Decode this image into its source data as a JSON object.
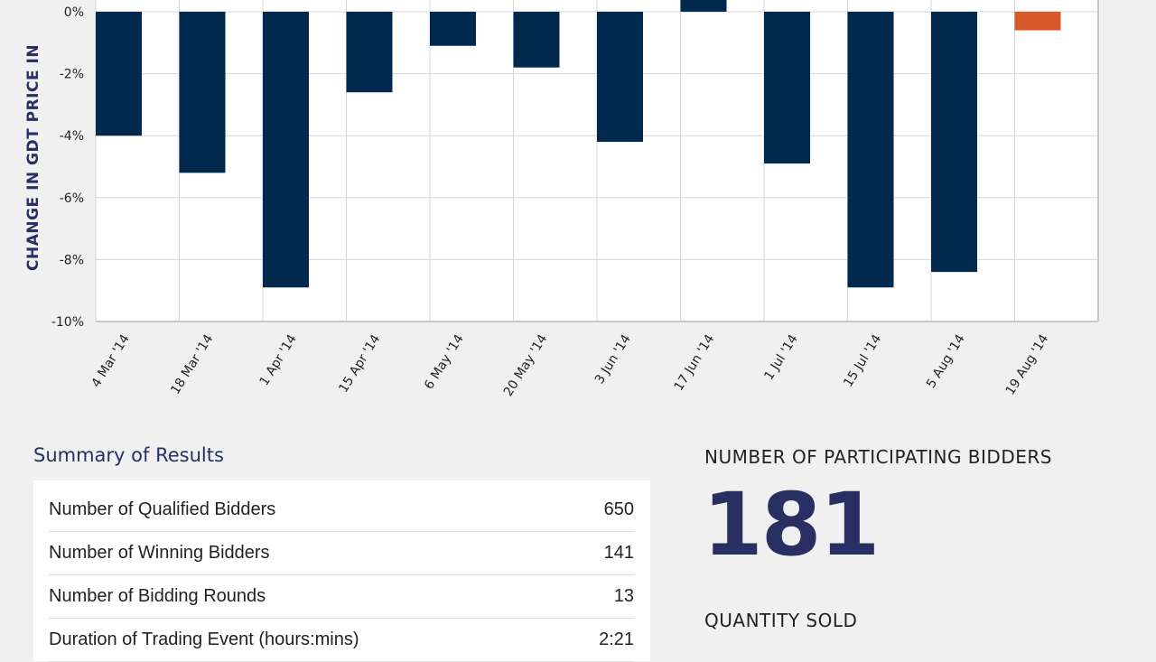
{
  "chart_data": {
    "type": "bar",
    "ylabel": "CHANGE IN GDT PRICE IN",
    "categories": [
      "4 Mar '14",
      "18 Mar '14",
      "1 Apr '14",
      "15 Apr '14",
      "6 May '14",
      "20 May '14",
      "3 Jun '14",
      "17 Jun '14",
      "1 Jul '14",
      "15 Jul '14",
      "5 Aug '14",
      "19 Aug '14"
    ],
    "values": [
      -4.0,
      -5.2,
      -8.9,
      -2.6,
      -1.1,
      -1.8,
      -4.2,
      0.4,
      -4.9,
      -8.9,
      -8.4,
      -0.6
    ],
    "yticks": [
      "0%",
      "-2%",
      "-4%",
      "-6%",
      "-8%",
      "-10%"
    ],
    "ylim": [
      -10,
      0.5
    ],
    "grid": true,
    "colors": {
      "default": "#00294d",
      "highlight": "#d9582a"
    },
    "highlight_index": 11
  },
  "summary": {
    "title": "Summary of Results",
    "rows": [
      {
        "label": "Number of Qualified Bidders",
        "value": "650"
      },
      {
        "label": "Number of Winning Bidders",
        "value": "141"
      },
      {
        "label": "Number of Bidding Rounds",
        "value": "13"
      },
      {
        "label": "Duration of Trading Event (hours:mins)",
        "value": "2:21"
      }
    ]
  },
  "stats": {
    "bidders_label": "NUMBER OF PARTICIPATING BIDDERS",
    "bidders_value": "181",
    "quantity_label": "QUANTITY SOLD"
  }
}
